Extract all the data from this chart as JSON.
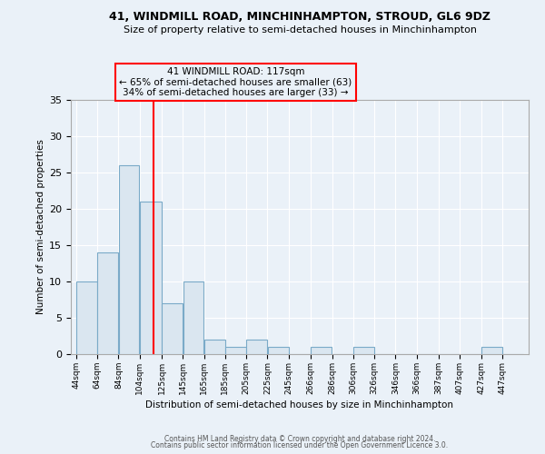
{
  "title1": "41, WINDMILL ROAD, MINCHINHAMPTON, STROUD, GL6 9DZ",
  "title2": "Size of property relative to semi-detached houses in Minchinhampton",
  "xlabel": "Distribution of semi-detached houses by size in Minchinhampton",
  "ylabel": "Number of semi-detached properties",
  "categories": [
    "44sqm",
    "64sqm",
    "84sqm",
    "104sqm",
    "125sqm",
    "145sqm",
    "165sqm",
    "185sqm",
    "205sqm",
    "225sqm",
    "245sqm",
    "266sqm",
    "286sqm",
    "306sqm",
    "326sqm",
    "346sqm",
    "366sqm",
    "387sqm",
    "407sqm",
    "427sqm",
    "447sqm"
  ],
  "values": [
    10,
    14,
    26,
    21,
    7,
    10,
    2,
    1,
    2,
    1,
    0,
    1,
    0,
    1,
    0,
    0,
    0,
    0,
    0,
    1,
    0
  ],
  "bar_color": "#dae6f0",
  "bar_edge_color": "#7aaac8",
  "annotation_title": "41 WINDMILL ROAD: 117sqm",
  "annotation_line1": "← 65% of semi-detached houses are smaller (63)",
  "annotation_line2": "34% of semi-detached houses are larger (33) →",
  "red_line_x": 117,
  "bin_edges": [
    44,
    64,
    84,
    104,
    125,
    145,
    165,
    185,
    205,
    225,
    245,
    266,
    286,
    306,
    326,
    346,
    366,
    387,
    407,
    427,
    447,
    467
  ],
  "xtick_positions": [
    44,
    64,
    84,
    104,
    125,
    145,
    165,
    185,
    205,
    225,
    245,
    266,
    286,
    306,
    326,
    346,
    366,
    387,
    407,
    427,
    447
  ],
  "ylim": [
    0,
    35
  ],
  "yticks": [
    0,
    5,
    10,
    15,
    20,
    25,
    30,
    35
  ],
  "footer1": "Contains HM Land Registry data © Crown copyright and database right 2024.",
  "footer2": "Contains public sector information licensed under the Open Government Licence 3.0.",
  "background_color": "#eaf1f8",
  "grid_color": "#ffffff"
}
